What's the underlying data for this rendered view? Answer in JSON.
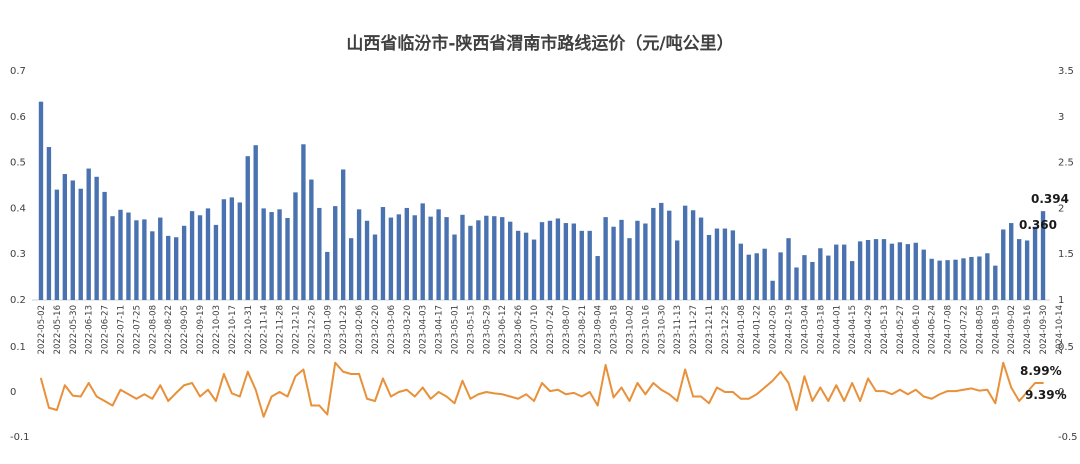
{
  "chart_data": {
    "type": "bar+line",
    "title": "山西省临汾市-陕西省渭南市路线运价（元/吨公里）",
    "colors": {
      "bars": "#4a72b0",
      "line": "#e8913a",
      "text": "#404040"
    },
    "grid": false,
    "upper_panel": {
      "left_axis": {
        "ylim": [
          0.2,
          0.7
        ],
        "ticks": [
          "0.7",
          "0.6",
          "0.5",
          "0.4",
          "0.3",
          "0.2"
        ]
      },
      "right_axis": {
        "ylim": [
          1,
          3.5
        ],
        "ticks": [
          "3.5",
          "3",
          "2.5",
          "2",
          "1.5",
          "1"
        ]
      }
    },
    "lower_panel": {
      "left_axis": {
        "ylim": [
          -0.1,
          0.1
        ],
        "ticks": [
          "0.1",
          "0",
          "-0.1"
        ]
      },
      "right_axis": {
        "ylim": [
          -0.5,
          0.5
        ],
        "ticks": [
          "0.5",
          "0",
          "-0.5"
        ]
      }
    },
    "x_tick_labels": [
      "2022-05-02",
      "2022-05-16",
      "2022-05-30",
      "2022-06-13",
      "2022-06-27",
      "2022-07-11",
      "2022-07-25",
      "2022-08-08",
      "2022-08-22",
      "2022-09-05",
      "2022-09-19",
      "2022-10-03",
      "2022-10-17",
      "2022-10-31",
      "2022-11-14",
      "2022-11-28",
      "2022-12-12",
      "2022-12-26",
      "2023-01-09",
      "2023-01-23",
      "2023-02-06",
      "2023-02-20",
      "2023-03-06",
      "2023-03-20",
      "2023-04-03",
      "2023-04-17",
      "2023-05-01",
      "2023-05-15",
      "2023-05-29",
      "2023-06-12",
      "2023-06-26",
      "2023-07-10",
      "2023-07-24",
      "2023-08-07",
      "2023-08-21",
      "2023-09-04",
      "2023-09-18",
      "2023-10-02",
      "2023-10-16",
      "2023-10-30",
      "2023-11-13",
      "2023-11-27",
      "2023-12-11",
      "2023-12-25",
      "2024-01-08",
      "2024-01-22",
      "2024-02-05",
      "2024-02-19",
      "2024-03-04",
      "2024-03-18",
      "2024-04-01",
      "2024-04-15",
      "2024-04-29",
      "2024-05-13",
      "2024-05-27",
      "2024-06-10",
      "2024-06-24",
      "2024-07-08",
      "2024-07-22",
      "2024-08-05",
      "2024-08-19",
      "2024-09-02",
      "2024-09-16",
      "2024-09-30",
      "2024-10-14"
    ],
    "series": [
      {
        "type": "bar",
        "axis": "upper-left",
        "values": [
          0.633,
          0.534,
          0.441,
          0.475,
          0.461,
          0.443,
          0.487,
          0.469,
          0.436,
          0.383,
          0.397,
          0.391,
          0.374,
          0.376,
          0.35,
          0.38,
          0.34,
          0.337,
          0.362,
          0.394,
          0.385,
          0.4,
          0.364,
          0.42,
          0.424,
          0.413,
          0.514,
          0.538,
          0.4,
          0.392,
          0.398,
          0.379,
          0.435,
          0.54,
          0.463,
          0.401,
          0.305,
          0.405,
          0.485,
          0.335,
          0.398,
          0.373,
          0.343,
          0.403,
          0.38,
          0.387,
          0.401,
          0.385,
          0.411,
          0.382,
          0.398,
          0.381,
          0.343,
          0.386,
          0.362,
          0.374,
          0.384,
          0.383,
          0.381,
          0.371,
          0.351,
          0.347,
          0.332,
          0.37,
          0.373,
          0.378,
          0.368,
          0.367,
          0.351,
          0.351,
          0.296,
          0.381,
          0.36,
          0.375,
          0.335,
          0.373,
          0.367,
          0.401,
          0.412,
          0.395,
          0.33,
          0.406,
          0.396,
          0.38,
          0.342,
          0.356,
          0.356,
          0.352,
          0.323,
          0.299,
          0.302,
          0.312,
          0.242,
          0.304,
          0.335,
          0.271,
          0.298,
          0.283,
          0.313,
          0.297,
          0.321,
          0.321,
          0.285,
          0.328,
          0.331,
          0.333,
          0.333,
          0.323,
          0.326,
          0.322,
          0.325,
          0.31,
          0.29,
          0.286,
          0.287,
          0.288,
          0.291,
          0.294,
          0.295,
          0.302,
          0.275,
          0.354,
          0.368,
          0.333,
          0.33,
          0.36,
          0.394
        ]
      },
      {
        "type": "line",
        "axis": "lower-left",
        "values": [
          0.03,
          -0.035,
          -0.04,
          0.015,
          -0.008,
          -0.01,
          0.02,
          -0.01,
          -0.02,
          -0.03,
          0.005,
          -0.005,
          -0.015,
          -0.005,
          -0.015,
          0.015,
          -0.02,
          -0.002,
          0.015,
          0.02,
          -0.01,
          0.005,
          -0.02,
          0.04,
          -0.003,
          -0.01,
          0.045,
          0.005,
          -0.055,
          -0.01,
          0.0,
          -0.01,
          0.035,
          0.05,
          -0.03,
          -0.03,
          -0.05,
          0.065,
          0.045,
          0.04,
          0.04,
          -0.015,
          -0.02,
          0.03,
          -0.01,
          0.0,
          0.005,
          -0.01,
          0.01,
          -0.015,
          0.0,
          -0.01,
          -0.025,
          0.025,
          -0.015,
          -0.005,
          0.0,
          -0.003,
          -0.005,
          -0.01,
          -0.015,
          -0.005,
          -0.02,
          0.02,
          0.002,
          0.005,
          -0.005,
          -0.002,
          -0.01,
          0.0,
          -0.03,
          0.06,
          -0.012,
          0.01,
          -0.02,
          0.02,
          -0.005,
          0.02,
          0.005,
          -0.005,
          -0.02,
          0.05,
          -0.01,
          -0.01,
          -0.025,
          0.01,
          0.0,
          0.0,
          -0.015,
          -0.015,
          -0.005,
          0.01,
          0.025,
          0.045,
          0.02,
          -0.04,
          0.035,
          -0.02,
          0.01,
          -0.02,
          0.015,
          -0.02,
          0.02,
          -0.02,
          0.03,
          0.002,
          0.002,
          -0.005,
          0.005,
          -0.005,
          0.005,
          -0.01,
          -0.015,
          -0.005,
          0.002,
          0.002,
          0.005,
          0.008,
          0.003,
          0.005,
          -0.025,
          0.065,
          0.01,
          -0.02,
          0.0,
          0.02,
          0.02
        ]
      }
    ],
    "annotations": {
      "bar_last": "0.394",
      "bar_prev": "0.360",
      "pct_upper": "8.99%",
      "pct_lower": "9.39%"
    }
  }
}
